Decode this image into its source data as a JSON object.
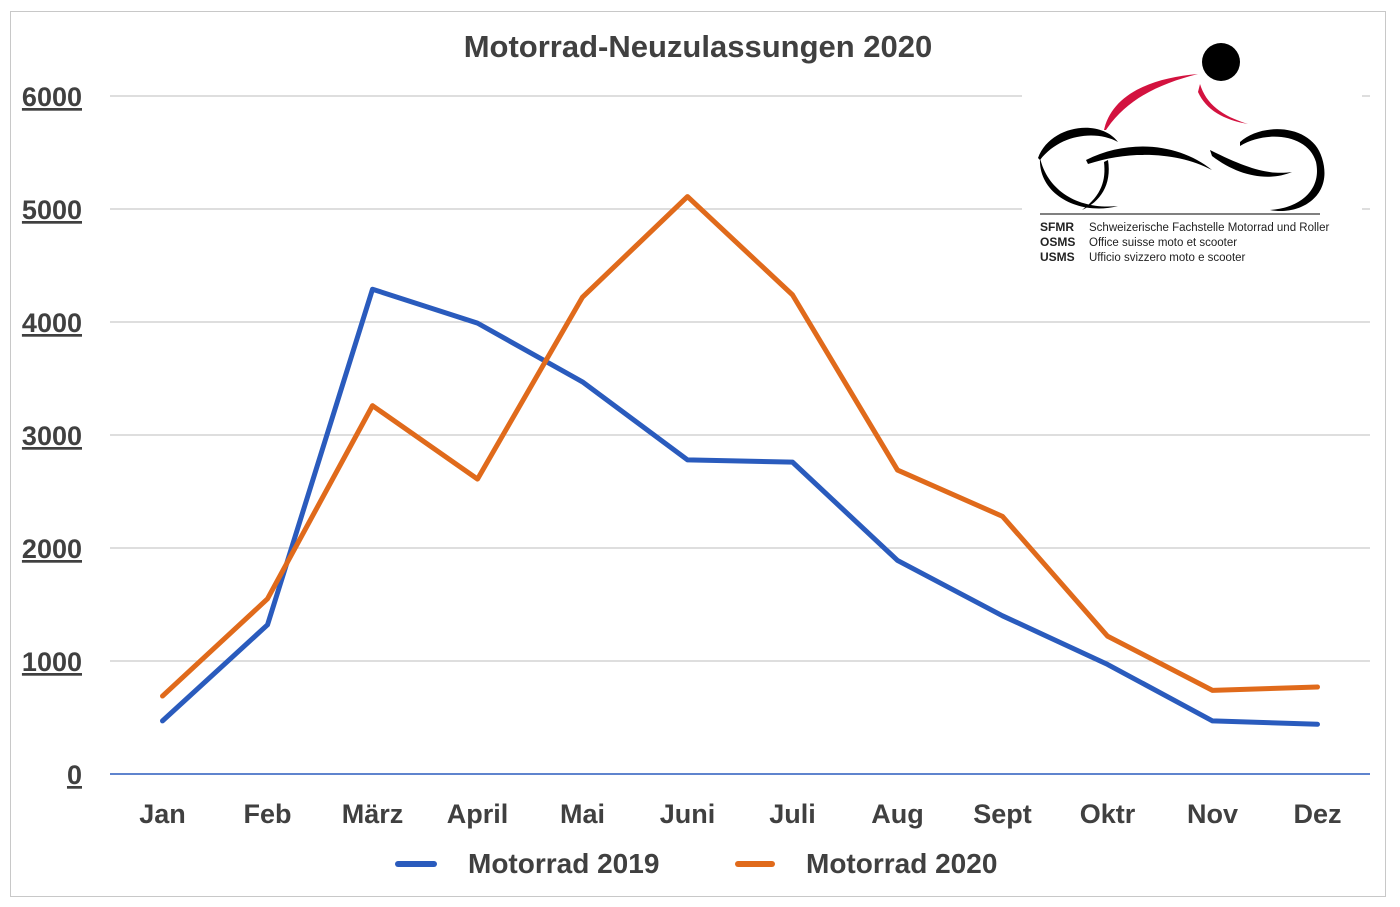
{
  "chart_data": {
    "type": "line",
    "title": "Motorrad-Neuzulassungen 2020",
    "categories": [
      "Jan",
      "Feb",
      "März",
      "April",
      "Mai",
      "Juni",
      "Juli",
      "Aug",
      "Sept",
      "Oktr",
      "Nov",
      "Dez"
    ],
    "series": [
      {
        "name": "Motorrad 2019",
        "color": "#2a5bbd",
        "values": [
          470,
          1320,
          4290,
          3990,
          3470,
          2780,
          2760,
          1890,
          1400,
          970,
          470,
          440
        ]
      },
      {
        "name": "Motorrad 2020",
        "color": "#e06a1b",
        "values": [
          690,
          1550,
          3260,
          2610,
          4220,
          5110,
          4240,
          2690,
          2280,
          1220,
          740,
          770
        ]
      }
    ],
    "y_ticks": [
      "0",
      "1000",
      "2000",
      "3000",
      "4000",
      "5000",
      "6000"
    ],
    "ylim": [
      0,
      6000
    ],
    "xlabel": "",
    "ylabel": "",
    "grid": true,
    "legend_position": "bottom"
  },
  "logo": {
    "lines": [
      {
        "abbr": "SFMR",
        "full": "Schweizerische Fachstelle Motorrad und Roller"
      },
      {
        "abbr": "OSMS",
        "full": "Office suisse moto et scooter"
      },
      {
        "abbr": "USMS",
        "full": "Ufficio svizzero moto e scooter"
      }
    ],
    "colors": {
      "accent": "#d3123f",
      "ink": "#000000"
    }
  }
}
